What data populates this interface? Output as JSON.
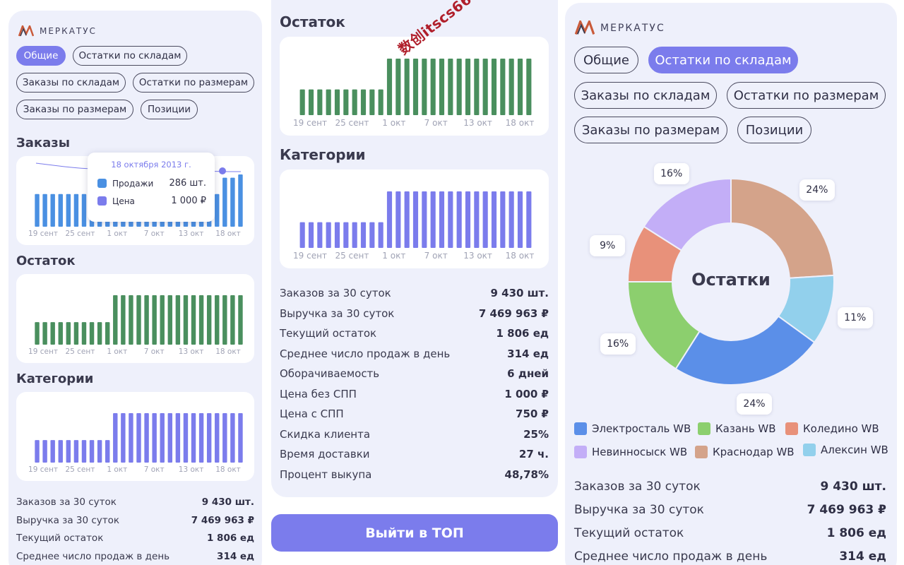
{
  "brand": "МЕРКАТУС",
  "tabs": [
    "Общие",
    "Остатки по складам",
    "Заказы по складам",
    "Остатки по размерам",
    "Заказы по размерам",
    "Позиции"
  ],
  "left": {
    "active_tab": 0,
    "sections": {
      "orders": "Заказы",
      "stock": "Остаток",
      "categories": "Категории"
    },
    "tooltip": {
      "date": "18 октября 2013 г.",
      "rows": [
        {
          "label": "Продажи",
          "value": "286 шт.",
          "color": "#4a90e2"
        },
        {
          "label": "Цена",
          "value": "1 000 ₽",
          "color": "#7b7cec"
        }
      ]
    },
    "stats": [
      {
        "label": "Заказов за 30 суток",
        "value": "9 430 шт."
      },
      {
        "label": "Выручка за 30 суток",
        "value": "7 469 963 ₽"
      },
      {
        "label": "Текущий остаток",
        "value": "1 806 ед"
      },
      {
        "label": "Среднее число продаж в день",
        "value": "314 ед"
      }
    ]
  },
  "mid": {
    "sections": {
      "stock": "Остаток",
      "categories": "Категории"
    },
    "watermark": "数创itscs66",
    "stats": [
      {
        "label": "Заказов за 30 суток",
        "value": "9 430 шт."
      },
      {
        "label": "Выручка за 30 суток",
        "value": "7 469 963 ₽"
      },
      {
        "label": "Текущий остаток",
        "value": "1 806 ед"
      },
      {
        "label": "Среднее число продаж в день",
        "value": "314 ед"
      },
      {
        "label": "Оборачиваемость",
        "value": "6 дней"
      },
      {
        "label": "Цена без СПП",
        "value": "1 000 ₽"
      },
      {
        "label": "Цена с СПП",
        "value": "750 ₽"
      },
      {
        "label": "Скидка клиента",
        "value": "25%"
      },
      {
        "label": "Время доставки",
        "value": "27 ч."
      },
      {
        "label": "Процент выкупа",
        "value": "48,78%"
      }
    ],
    "cta": "Выйти в ТОП"
  },
  "right": {
    "active_tab": 1,
    "donut_center": "Остатки",
    "legend": [
      {
        "name": "Электросталь WB",
        "color": "#5b8fe8"
      },
      {
        "name": "Казань WB",
        "color": "#8ccf6e"
      },
      {
        "name": "Коледино WB",
        "color": "#e8917a"
      },
      {
        "name": "Невинносыск WB",
        "color": "#c3aef7"
      },
      {
        "name": "Краснодар WB",
        "color": "#d4a38a"
      },
      {
        "name": "Алексин WB",
        "color": "#92d0ec"
      }
    ],
    "stats": [
      {
        "label": "Заказов за 30 суток",
        "value": "9 430 шт."
      },
      {
        "label": "Выручка за 30 суток",
        "value": "7 469 963 ₽"
      },
      {
        "label": "Текущий остаток",
        "value": "1 806 ед"
      },
      {
        "label": "Среднее число продаж в день",
        "value": "314 ед"
      }
    ]
  },
  "chart_data": [
    {
      "type": "bar",
      "chart": "orders",
      "x_ticks": [
        "19 сент",
        "25 сент",
        "1 окт",
        "7 окт",
        "13 окт",
        "18 окт"
      ],
      "values": [
        2,
        2,
        2,
        2,
        2,
        2,
        2,
        2,
        2,
        2,
        2,
        2,
        2,
        2,
        2,
        2,
        2,
        2,
        2,
        2,
        2,
        2,
        2,
        2,
        3,
        3,
        3.2
      ],
      "color": "#4a90e2",
      "overlay_series_color": "#7b7cec"
    },
    {
      "type": "bar",
      "chart": "stock",
      "x_ticks": [
        "19 сент",
        "25 сент",
        "1 окт",
        "7 окт",
        "13 окт",
        "18 окт"
      ],
      "values": [
        1,
        1,
        1,
        1,
        1,
        1,
        1,
        1,
        1,
        1,
        2.2,
        2.2,
        2.2,
        2.2,
        2.2,
        2.2,
        2.2,
        2.2,
        2.2,
        2.2,
        2.2,
        2.2,
        2.2,
        2.2,
        2.2,
        2.2,
        2.2
      ],
      "color": "#4a8f5e"
    },
    {
      "type": "bar",
      "chart": "categories",
      "x_ticks": [
        "19 сент",
        "25 сент",
        "1 окт",
        "7 окт",
        "13 окт",
        "18 окт"
      ],
      "values": [
        1,
        1,
        1,
        1,
        1,
        1,
        1,
        1,
        1,
        1,
        2.2,
        2.2,
        2.2,
        2.2,
        2.2,
        2.2,
        2.2,
        2.2,
        2.2,
        2.2,
        2.2,
        2.2,
        2.2,
        2.2,
        2.2,
        2.2,
        2.2
      ],
      "color": "#7b7cec"
    },
    {
      "type": "pie",
      "chart": "stock_by_warehouse",
      "slices": [
        {
          "name": "Краснодар WB",
          "value": 24,
          "label": "24%",
          "color": "#d4a38a"
        },
        {
          "name": "Алексин WB",
          "value": 11,
          "label": "11%",
          "color": "#92d0ec"
        },
        {
          "name": "Электросталь WB",
          "value": 24,
          "label": "24%",
          "color": "#5b8fe8"
        },
        {
          "name": "Казань WB",
          "value": 16,
          "label": "16%",
          "color": "#8ccf6e"
        },
        {
          "name": "Коледино WB",
          "value": 9,
          "label": "9%",
          "color": "#e8917a"
        },
        {
          "name": "Невинносыск WB",
          "value": 16,
          "label": "16%",
          "color": "#c3aef7"
        }
      ]
    }
  ]
}
